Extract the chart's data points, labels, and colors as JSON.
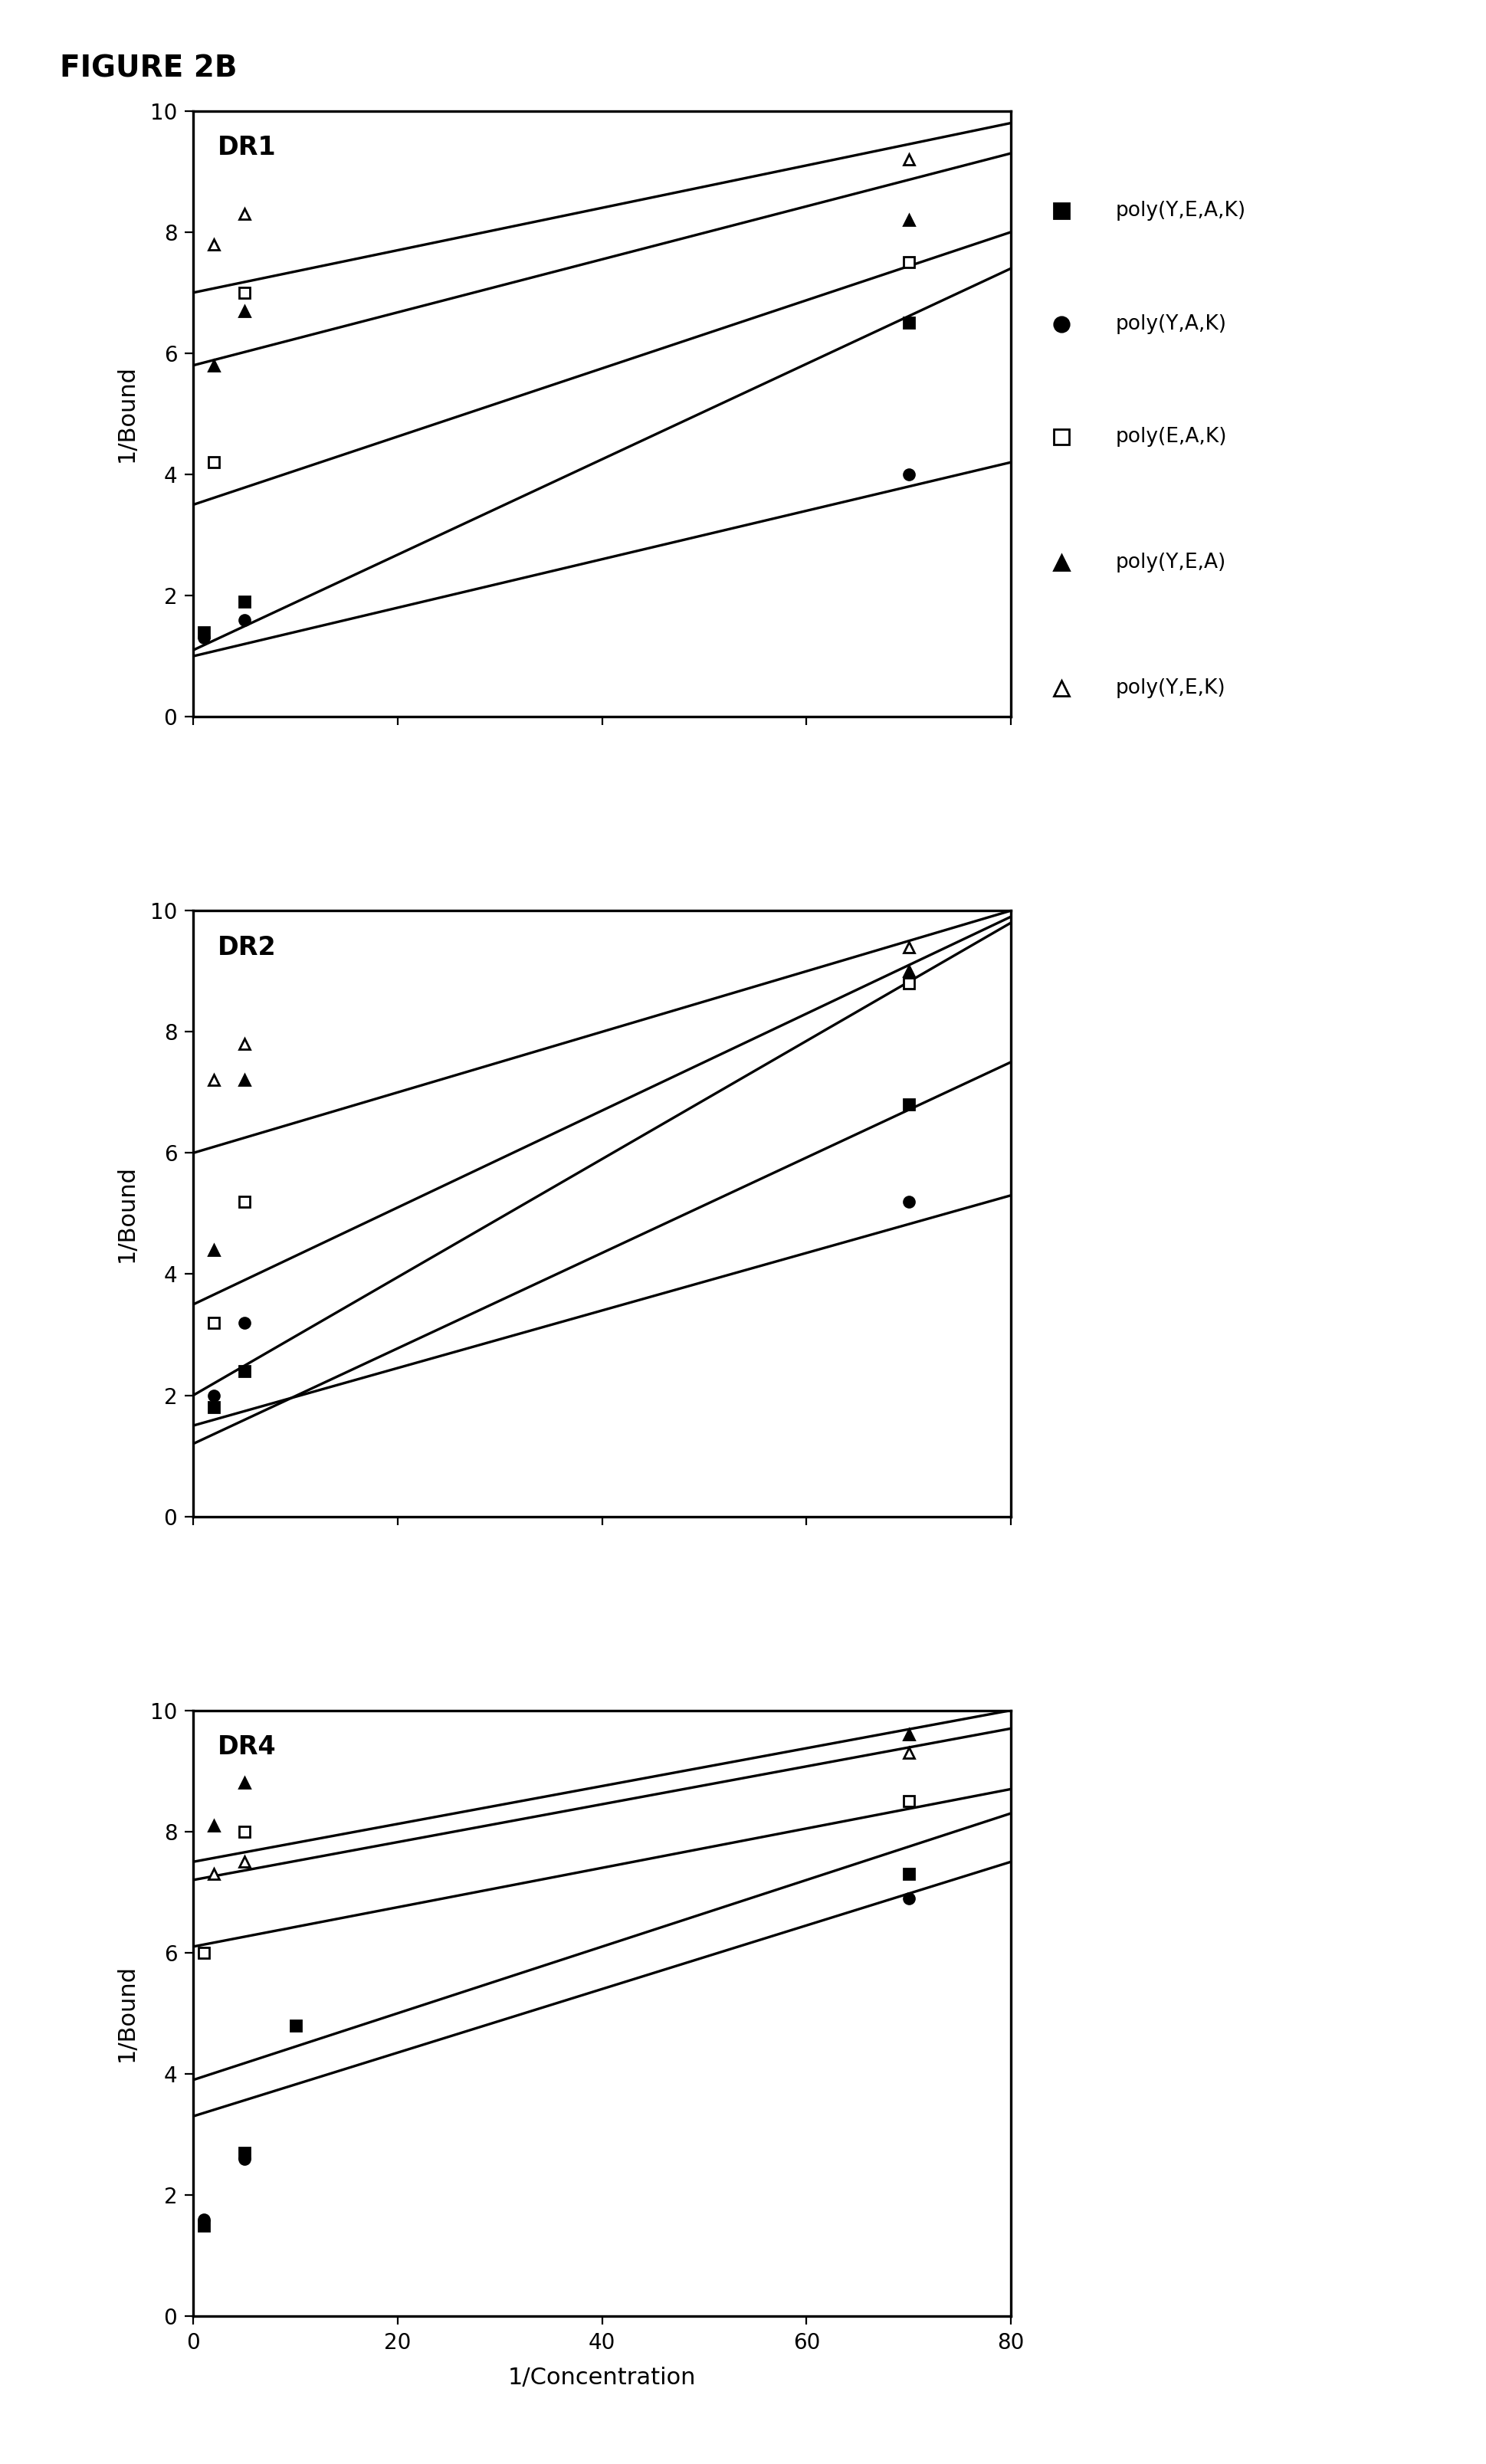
{
  "figure_title": "FIGURE 2B",
  "panels": [
    "DR1",
    "DR2",
    "DR4"
  ],
  "xlabel": "1/Concentration",
  "ylabel": "1/Bound",
  "xlim": [
    0,
    80
  ],
  "ylim": [
    0,
    10
  ],
  "xticks": [
    0,
    20,
    40,
    60,
    80
  ],
  "yticks": [
    0,
    2,
    4,
    6,
    8,
    10
  ],
  "series": [
    {
      "label": "poly(Y,E,A,K)",
      "marker": "s",
      "filled": true
    },
    {
      "label": "poly(Y,A,K)",
      "marker": "o",
      "filled": true
    },
    {
      "label": "poly(E,A,K)",
      "marker": "s",
      "filled": false
    },
    {
      "label": "poly(Y,E,A)",
      "marker": "^",
      "filled": true
    },
    {
      "label": "poly(Y,E,K)",
      "marker": "^",
      "filled": false
    }
  ],
  "DR1": {
    "points": [
      [
        [
          1,
          1.4
        ],
        [
          5,
          1.9
        ],
        [
          70,
          6.5
        ]
      ],
      [
        [
          1,
          1.3
        ],
        [
          5,
          1.6
        ],
        [
          70,
          4.0
        ]
      ],
      [
        [
          2,
          4.2
        ],
        [
          5,
          7.0
        ],
        [
          70,
          7.5
        ]
      ],
      [
        [
          2,
          5.8
        ],
        [
          5,
          6.7
        ],
        [
          70,
          8.2
        ]
      ],
      [
        [
          2,
          7.8
        ],
        [
          5,
          8.3
        ],
        [
          70,
          9.2
        ]
      ]
    ],
    "lines": [
      [
        0,
        1.1,
        80,
        7.4
      ],
      [
        0,
        1.0,
        80,
        4.2
      ],
      [
        0,
        3.5,
        80,
        8.0
      ],
      [
        0,
        5.8,
        80,
        9.3
      ],
      [
        0,
        7.0,
        80,
        9.8
      ]
    ]
  },
  "DR2": {
    "points": [
      [
        [
          2,
          1.8
        ],
        [
          5,
          2.4
        ],
        [
          70,
          6.8
        ]
      ],
      [
        [
          2,
          2.0
        ],
        [
          5,
          3.2
        ],
        [
          70,
          5.2
        ]
      ],
      [
        [
          2,
          3.2
        ],
        [
          5,
          5.2
        ],
        [
          70,
          8.8
        ]
      ],
      [
        [
          2,
          4.4
        ],
        [
          5,
          7.2
        ],
        [
          70,
          9.0
        ]
      ],
      [
        [
          2,
          7.2
        ],
        [
          5,
          7.8
        ],
        [
          70,
          9.4
        ]
      ]
    ],
    "lines": [
      [
        0,
        1.2,
        80,
        7.5
      ],
      [
        0,
        1.5,
        80,
        5.3
      ],
      [
        0,
        2.0,
        80,
        9.8
      ],
      [
        0,
        3.5,
        80,
        9.9
      ],
      [
        0,
        6.0,
        80,
        10.0
      ]
    ]
  },
  "DR4": {
    "points": [
      [
        [
          1,
          1.5
        ],
        [
          5,
          2.7
        ],
        [
          10,
          4.8
        ],
        [
          70,
          7.3
        ]
      ],
      [
        [
          1,
          1.6
        ],
        [
          5,
          2.6
        ],
        [
          70,
          6.9
        ]
      ],
      [
        [
          1,
          6.0
        ],
        [
          5,
          8.0
        ],
        [
          70,
          8.5
        ]
      ],
      [
        [
          2,
          8.1
        ],
        [
          5,
          8.8
        ],
        [
          70,
          9.6
        ]
      ],
      [
        [
          2,
          7.3
        ],
        [
          5,
          7.5
        ],
        [
          70,
          9.3
        ]
      ]
    ],
    "lines": [
      [
        0,
        3.9,
        80,
        8.3
      ],
      [
        0,
        3.3,
        80,
        7.5
      ],
      [
        0,
        6.1,
        80,
        8.7
      ],
      [
        0,
        7.5,
        80,
        10.0
      ],
      [
        0,
        7.2,
        80,
        9.7
      ]
    ]
  }
}
